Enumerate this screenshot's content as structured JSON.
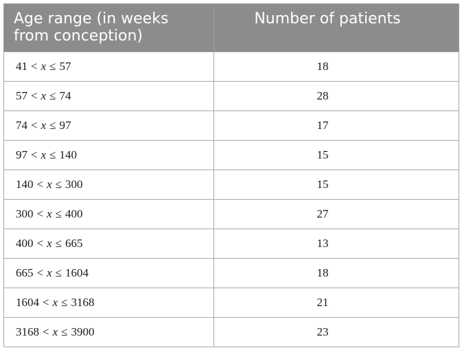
{
  "table": {
    "headers": [
      "Age range (in weeks from conception)",
      "Number of patients"
    ],
    "rows": [
      {
        "lower": "41",
        "variable": "x",
        "upper": "57",
        "patients": "18"
      },
      {
        "lower": "57",
        "variable": "x",
        "upper": "74",
        "patients": "28"
      },
      {
        "lower": "74",
        "variable": "x",
        "upper": "97",
        "patients": "17"
      },
      {
        "lower": "97",
        "variable": "x",
        "upper": "140",
        "patients": "15"
      },
      {
        "lower": "140",
        "variable": "x",
        "upper": "300",
        "patients": "15"
      },
      {
        "lower": "300",
        "variable": "x",
        "upper": "400",
        "patients": "27"
      },
      {
        "lower": "400",
        "variable": "x",
        "upper": "665",
        "patients": "13"
      },
      {
        "lower": "665",
        "variable": "x",
        "upper": "1604",
        "patients": "18"
      },
      {
        "lower": "1604",
        "variable": "x",
        "upper": "3168",
        "patients": "21"
      },
      {
        "lower": "3168",
        "variable": "x",
        "upper": "3900",
        "patients": "23"
      }
    ],
    "lt_symbol": "<",
    "le_symbol": "≤"
  }
}
